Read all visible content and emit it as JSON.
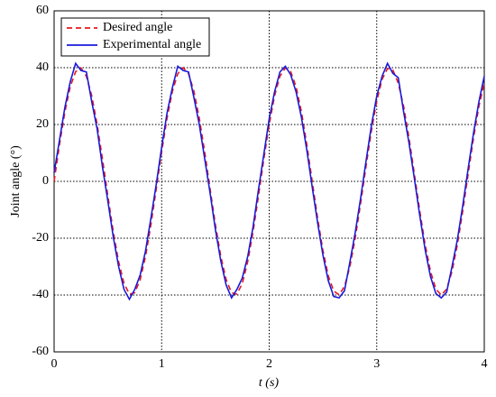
{
  "chart_data": {
    "type": "line",
    "xlabel": "t (s)",
    "ylabel": "Joint angle (°)",
    "xlim": [
      0,
      4
    ],
    "xticks": [
      0,
      1,
      2,
      3,
      4
    ],
    "ylim": [
      -60,
      60
    ],
    "yticks": [
      -60,
      -40,
      -20,
      0,
      20,
      40,
      60
    ],
    "grid": true,
    "legend": "upper left",
    "x": [
      0,
      0.05,
      0.1,
      0.15,
      0.2,
      0.25,
      0.3,
      0.35,
      0.4,
      0.45,
      0.5,
      0.55,
      0.6,
      0.65,
      0.7,
      0.75,
      0.8,
      0.85,
      0.9,
      0.95,
      1,
      1.05,
      1.1,
      1.15,
      1.2,
      1.25,
      1.3,
      1.35,
      1.4,
      1.45,
      1.5,
      1.55,
      1.6,
      1.65,
      1.7,
      1.75,
      1.8,
      1.85,
      1.9,
      1.95,
      2,
      2.05,
      2.1,
      2.15,
      2.2,
      2.25,
      2.3,
      2.35,
      2.4,
      2.45,
      2.5,
      2.55,
      2.6,
      2.65,
      2.7,
      2.75,
      2.8,
      2.85,
      2.9,
      2.95,
      3,
      3.05,
      3.1,
      3.15,
      3.2,
      3.25,
      3.3,
      3.35,
      3.4,
      3.45,
      3.5,
      3.55,
      3.6,
      3.65,
      3.7,
      3.75,
      3.8,
      3.85,
      3.9,
      3.95,
      4
    ],
    "series": [
      {
        "name": "Desired angle",
        "color": "#e8191e",
        "style": "dashed",
        "values": [
          0,
          12.9,
          24.4,
          33.3,
          38.6,
          39.9,
          37.0,
          30.1,
          20.0,
          7.8,
          -5.2,
          -17.7,
          -28.3,
          -35.9,
          -39.7,
          -39.2,
          -34.6,
          -26.4,
          -15.3,
          -2.6,
          10.4,
          22.2,
          31.7,
          37.9,
          40,
          37.9,
          31.7,
          22.2,
          10.4,
          -2.6,
          -15.3,
          -26.4,
          -34.6,
          -39.2,
          -39.7,
          -35.9,
          -28.3,
          -17.7,
          -5.2,
          7.8,
          20.0,
          30.1,
          37.0,
          39.9,
          38.6,
          33.3,
          24.4,
          12.9,
          0,
          -12.9,
          -24.4,
          -33.3,
          -38.6,
          -39.9,
          -37.0,
          -30.1,
          -20.0,
          -7.8,
          5.2,
          17.7,
          28.3,
          35.9,
          39.7,
          39.2,
          34.6,
          26.4,
          15.3,
          2.6,
          -10.4,
          -22.2,
          -31.7,
          -37.9,
          -40,
          -37.9,
          -31.7,
          -22.2,
          -10.4,
          2.6,
          15.3,
          26.4,
          34.6
        ]
      },
      {
        "name": "Experimental angle",
        "color": "#1a1adb",
        "style": "solid",
        "values": [
          3,
          14.5,
          26,
          35,
          41.5,
          39,
          38.5,
          28,
          18.5,
          5,
          -7,
          -19.5,
          -30,
          -38,
          -41.5,
          -38,
          -33,
          -24.5,
          -13,
          -1,
          12,
          24,
          33,
          40.5,
          39,
          38.5,
          29.5,
          20,
          8,
          -4,
          -17,
          -28,
          -36.5,
          -41,
          -38,
          -34,
          -26.5,
          -16,
          -3,
          9.5,
          22,
          31.5,
          38.5,
          40.5,
          37.5,
          31.5,
          22.5,
          11,
          -2,
          -14.5,
          -26,
          -35,
          -40.5,
          -41,
          -38.5,
          -28.5,
          -18,
          -6,
          7,
          19.5,
          30,
          37,
          41.5,
          38,
          36.5,
          24.5,
          13.5,
          1,
          -12,
          -24,
          -33.5,
          -39.5,
          -41,
          -39,
          -30,
          -20.5,
          -8.5,
          4.5,
          17,
          28,
          37
        ]
      }
    ]
  }
}
